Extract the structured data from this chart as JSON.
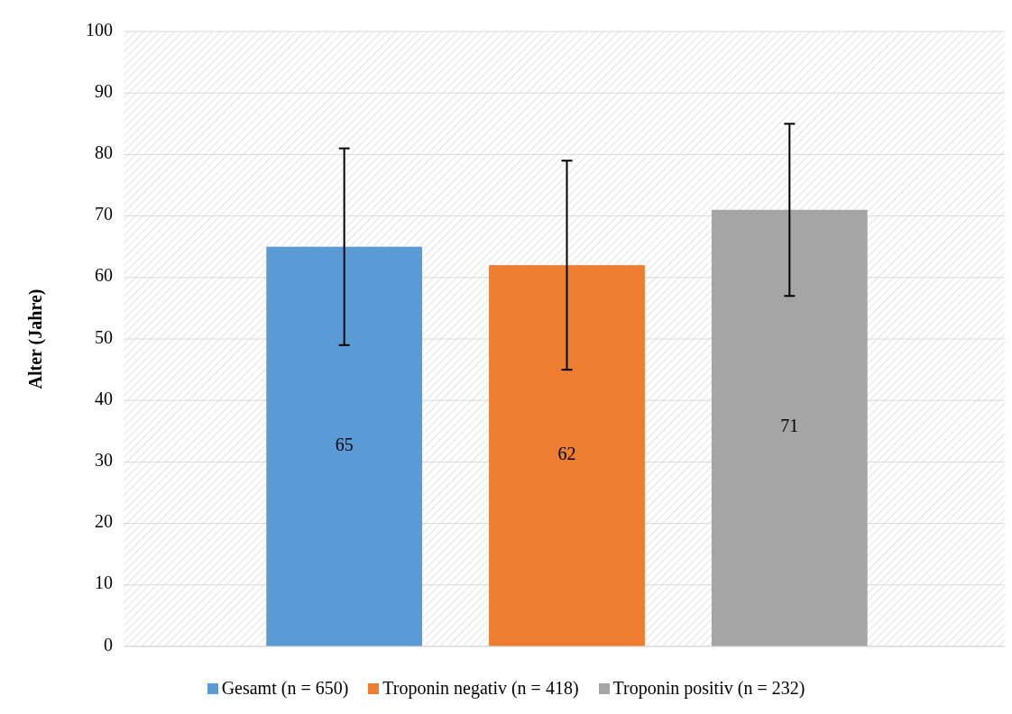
{
  "chart_data": {
    "type": "bar",
    "ylabel": "Alter (Jahre)",
    "categories": [
      null
    ],
    "series": [
      {
        "name": "Gesamt (n = 650)",
        "color": "#5b9bd5",
        "values": [
          65
        ],
        "errors": [
          [
            49,
            81
          ]
        ]
      },
      {
        "name": "Troponin negativ (n = 418)",
        "color": "#ed7d31",
        "values": [
          62
        ],
        "errors": [
          [
            45,
            79
          ]
        ]
      },
      {
        "name": "Troponin positiv (n = 232)",
        "color": "#a5a5a5",
        "values": [
          71
        ],
        "errors": [
          [
            57,
            85
          ]
        ]
      }
    ],
    "ylim": [
      0,
      100
    ],
    "yticks": [
      0,
      10,
      20,
      30,
      40,
      50,
      60,
      70,
      80,
      90,
      100
    ],
    "grid": "y",
    "legend": "bottom",
    "data_labels": true
  }
}
